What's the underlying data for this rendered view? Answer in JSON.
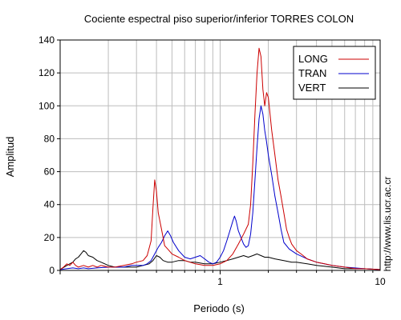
{
  "chart_data": {
    "type": "line",
    "title": "Cociente espectral piso superior/inferior  TORRES COLON",
    "xlabel": "Periodo (s)",
    "ylabel": "Amplitud",
    "x_scale": "log",
    "xlim": [
      0.1,
      10
    ],
    "ylim": [
      0,
      140
    ],
    "x_tick_labels": [
      "1",
      "10"
    ],
    "y_tick_labels": [
      "0",
      "20",
      "40",
      "60",
      "80",
      "100",
      "120",
      "140"
    ],
    "grid": true,
    "legend_position": "top-right",
    "side_note": "http://www.lis.ucr.ac.cr",
    "series": [
      {
        "name": "LONG",
        "color": "#cc0000",
        "points": [
          [
            0.1,
            0.5
          ],
          [
            0.105,
            2
          ],
          [
            0.11,
            4
          ],
          [
            0.115,
            3
          ],
          [
            0.12,
            5
          ],
          [
            0.125,
            3
          ],
          [
            0.13,
            2
          ],
          [
            0.14,
            3
          ],
          [
            0.15,
            2
          ],
          [
            0.16,
            3
          ],
          [
            0.17,
            2
          ],
          [
            0.18,
            3
          ],
          [
            0.2,
            2
          ],
          [
            0.22,
            2
          ],
          [
            0.25,
            3
          ],
          [
            0.28,
            4
          ],
          [
            0.3,
            5
          ],
          [
            0.33,
            6
          ],
          [
            0.35,
            9
          ],
          [
            0.37,
            18
          ],
          [
            0.38,
            38
          ],
          [
            0.39,
            55
          ],
          [
            0.4,
            48
          ],
          [
            0.41,
            35
          ],
          [
            0.43,
            25
          ],
          [
            0.45,
            15
          ],
          [
            0.48,
            12
          ],
          [
            0.5,
            10
          ],
          [
            0.55,
            8
          ],
          [
            0.6,
            6
          ],
          [
            0.7,
            4
          ],
          [
            0.8,
            3
          ],
          [
            0.9,
            3
          ],
          [
            1.0,
            4
          ],
          [
            1.1,
            6
          ],
          [
            1.2,
            10
          ],
          [
            1.3,
            16
          ],
          [
            1.4,
            22
          ],
          [
            1.5,
            28
          ],
          [
            1.55,
            40
          ],
          [
            1.6,
            65
          ],
          [
            1.65,
            95
          ],
          [
            1.7,
            120
          ],
          [
            1.75,
            135
          ],
          [
            1.8,
            130
          ],
          [
            1.85,
            110
          ],
          [
            1.9,
            100
          ],
          [
            1.95,
            108
          ],
          [
            2.0,
            105
          ],
          [
            2.05,
            95
          ],
          [
            2.1,
            85
          ],
          [
            2.2,
            70
          ],
          [
            2.3,
            55
          ],
          [
            2.4,
            45
          ],
          [
            2.5,
            35
          ],
          [
            2.6,
            25
          ],
          [
            2.7,
            20
          ],
          [
            2.8,
            16
          ],
          [
            3.0,
            12
          ],
          [
            3.2,
            10
          ],
          [
            3.5,
            7
          ],
          [
            4.0,
            5
          ],
          [
            4.5,
            4
          ],
          [
            5.0,
            3
          ],
          [
            6.0,
            2
          ],
          [
            7.0,
            1
          ],
          [
            8.0,
            1
          ],
          [
            10.0,
            0.5
          ]
        ]
      },
      {
        "name": "TRAN",
        "color": "#0000cc",
        "points": [
          [
            0.1,
            0.5
          ],
          [
            0.11,
            1
          ],
          [
            0.12,
            1.5
          ],
          [
            0.13,
            1
          ],
          [
            0.14,
            1.5
          ],
          [
            0.15,
            1
          ],
          [
            0.17,
            1.5
          ],
          [
            0.2,
            2
          ],
          [
            0.22,
            2
          ],
          [
            0.25,
            2
          ],
          [
            0.28,
            3
          ],
          [
            0.3,
            3
          ],
          [
            0.33,
            3
          ],
          [
            0.35,
            4
          ],
          [
            0.37,
            6
          ],
          [
            0.39,
            10
          ],
          [
            0.41,
            14
          ],
          [
            0.43,
            17
          ],
          [
            0.45,
            21
          ],
          [
            0.47,
            24
          ],
          [
            0.49,
            21
          ],
          [
            0.51,
            17
          ],
          [
            0.55,
            12
          ],
          [
            0.6,
            8
          ],
          [
            0.65,
            7
          ],
          [
            0.7,
            8
          ],
          [
            0.75,
            9
          ],
          [
            0.8,
            7
          ],
          [
            0.85,
            5
          ],
          [
            0.9,
            4
          ],
          [
            0.95,
            5
          ],
          [
            1.0,
            8
          ],
          [
            1.05,
            12
          ],
          [
            1.1,
            18
          ],
          [
            1.15,
            24
          ],
          [
            1.2,
            30
          ],
          [
            1.23,
            33
          ],
          [
            1.26,
            30
          ],
          [
            1.3,
            24
          ],
          [
            1.35,
            20
          ],
          [
            1.4,
            16
          ],
          [
            1.45,
            14
          ],
          [
            1.5,
            15
          ],
          [
            1.55,
            22
          ],
          [
            1.6,
            35
          ],
          [
            1.65,
            55
          ],
          [
            1.7,
            75
          ],
          [
            1.75,
            92
          ],
          [
            1.8,
            100
          ],
          [
            1.85,
            95
          ],
          [
            1.9,
            85
          ],
          [
            1.95,
            78
          ],
          [
            2.0,
            70
          ],
          [
            2.1,
            58
          ],
          [
            2.2,
            45
          ],
          [
            2.3,
            35
          ],
          [
            2.4,
            25
          ],
          [
            2.5,
            17
          ],
          [
            2.7,
            13
          ],
          [
            3.0,
            10
          ],
          [
            3.5,
            7
          ],
          [
            4.0,
            5
          ],
          [
            5.0,
            3
          ],
          [
            6.0,
            2
          ],
          [
            8.0,
            1
          ],
          [
            10.0,
            0.5
          ]
        ]
      },
      {
        "name": "VERT",
        "color": "#000000",
        "points": [
          [
            0.1,
            0.5
          ],
          [
            0.11,
            3
          ],
          [
            0.12,
            5
          ],
          [
            0.125,
            7
          ],
          [
            0.13,
            8
          ],
          [
            0.135,
            10
          ],
          [
            0.14,
            12
          ],
          [
            0.145,
            11
          ],
          [
            0.15,
            9
          ],
          [
            0.16,
            8
          ],
          [
            0.17,
            6
          ],
          [
            0.18,
            5
          ],
          [
            0.2,
            3
          ],
          [
            0.22,
            2
          ],
          [
            0.25,
            2
          ],
          [
            0.28,
            2
          ],
          [
            0.3,
            2
          ],
          [
            0.33,
            3
          ],
          [
            0.36,
            4
          ],
          [
            0.38,
            6
          ],
          [
            0.4,
            9
          ],
          [
            0.42,
            8
          ],
          [
            0.44,
            6
          ],
          [
            0.47,
            5
          ],
          [
            0.5,
            5
          ],
          [
            0.55,
            6
          ],
          [
            0.6,
            6
          ],
          [
            0.65,
            5
          ],
          [
            0.7,
            5
          ],
          [
            0.8,
            4
          ],
          [
            0.9,
            4
          ],
          [
            1.0,
            5
          ],
          [
            1.1,
            6
          ],
          [
            1.2,
            7
          ],
          [
            1.3,
            8
          ],
          [
            1.4,
            9
          ],
          [
            1.5,
            8
          ],
          [
            1.6,
            9
          ],
          [
            1.7,
            10
          ],
          [
            1.8,
            9
          ],
          [
            1.9,
            8
          ],
          [
            2.0,
            8
          ],
          [
            2.2,
            7
          ],
          [
            2.5,
            6
          ],
          [
            2.8,
            5
          ],
          [
            3.0,
            5
          ],
          [
            3.5,
            4
          ],
          [
            4.0,
            3
          ],
          [
            5.0,
            2
          ],
          [
            6.0,
            1
          ],
          [
            8.0,
            1
          ],
          [
            10.0,
            0.5
          ]
        ]
      }
    ]
  }
}
